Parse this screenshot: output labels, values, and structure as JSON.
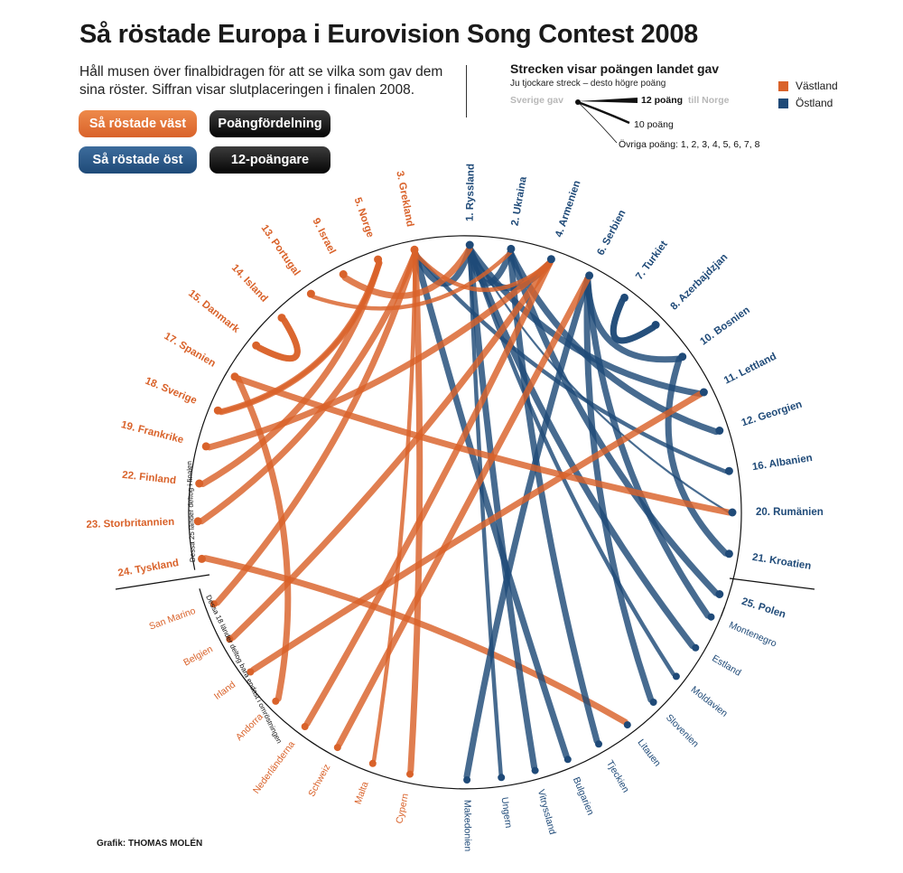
{
  "title": "Så röstade Europa i Eurovision Song Contest 2008",
  "intro": "Håll musen över finalbidragen för att se vilka som gav dem sina röster. Siffran visar slutplaceringen i finalen 2008.",
  "buttons": {
    "west": "Så röstade väst",
    "east": "Så röstade öst",
    "distribution": "Poängfördelning",
    "twelve": "12-poängare"
  },
  "legend": {
    "title": "Strecken visar poängen landet gav",
    "subtitle": "Ju tjockare streck – desto högre poäng",
    "giver": "Sverige gav",
    "twelve": "12 poäng",
    "receiver": "till Norge",
    "ten": "10 poäng",
    "other": "Övriga poäng: 1, 2, 3, 4, 5, 6, 7, 8",
    "west": "Västland",
    "east": "Östland"
  },
  "colors": {
    "west": "#d9622a",
    "east": "#1f4a78",
    "button_dark": "#111111"
  },
  "notes": {
    "finalists": "Dessa 25 länder deltog i finalen",
    "semi": "Dessa 18 länder deltog bara endast i omröstningen"
  },
  "credit": "Grafik: THOMAS MOLÉN",
  "chart_data": {
    "type": "chord",
    "finalists": [
      {
        "label": "1. Ryssland",
        "group": "east"
      },
      {
        "label": "2. Ukraina",
        "group": "east"
      },
      {
        "label": "4. Armenien",
        "group": "east"
      },
      {
        "label": "6. Serbien",
        "group": "east"
      },
      {
        "label": "7. Turkiet",
        "group": "east"
      },
      {
        "label": "8. Azerbajdzjan",
        "group": "east"
      },
      {
        "label": "10. Bosnien",
        "group": "east"
      },
      {
        "label": "11. Lettland",
        "group": "east"
      },
      {
        "label": "12. Georgien",
        "group": "east"
      },
      {
        "label": "16. Albanien",
        "group": "east"
      },
      {
        "label": "20. Rumänien",
        "group": "east"
      },
      {
        "label": "21. Kroatien",
        "group": "east"
      },
      {
        "label": "25. Polen",
        "group": "east"
      },
      {
        "label": "24. Tyskland",
        "group": "west"
      },
      {
        "label": "23. Storbritannien",
        "group": "west"
      },
      {
        "label": "22. Finland",
        "group": "west"
      },
      {
        "label": "19. Frankrike",
        "group": "west"
      },
      {
        "label": "18. Sverige",
        "group": "west"
      },
      {
        "label": "17. Spanien",
        "group": "west"
      },
      {
        "label": "15. Danmark",
        "group": "west"
      },
      {
        "label": "14. Island",
        "group": "west"
      },
      {
        "label": "13. Portugal",
        "group": "west"
      },
      {
        "label": "9. Israel",
        "group": "west"
      },
      {
        "label": "5. Norge",
        "group": "west"
      },
      {
        "label": "3. Grekland",
        "group": "west"
      }
    ],
    "voters_only": [
      {
        "label": "Montenegro",
        "group": "east"
      },
      {
        "label": "Estland",
        "group": "east"
      },
      {
        "label": "Moldavien",
        "group": "east"
      },
      {
        "label": "Slovenien",
        "group": "east"
      },
      {
        "label": "Litauen",
        "group": "east"
      },
      {
        "label": "Tjeckien",
        "group": "east"
      },
      {
        "label": "Bulgarien",
        "group": "east"
      },
      {
        "label": "Vitryssland",
        "group": "east"
      },
      {
        "label": "Ungern",
        "group": "east"
      },
      {
        "label": "Makedonien",
        "group": "east"
      },
      {
        "label": "San Marino",
        "group": "west"
      },
      {
        "label": "Belgien",
        "group": "west"
      },
      {
        "label": "Irland",
        "group": "west"
      },
      {
        "label": "Andorra",
        "group": "west"
      },
      {
        "label": "Nederländerna",
        "group": "west"
      },
      {
        "label": "Schweiz",
        "group": "west"
      },
      {
        "label": "Malta",
        "group": "west"
      },
      {
        "label": "Cypern",
        "group": "west"
      }
    ],
    "links": [
      {
        "from": "Sverige",
        "to": "Norge",
        "points": 12
      },
      {
        "from": "Tyskland",
        "to": "Litauen",
        "points": 12
      },
      {
        "from": "Ryssland",
        "to": "Grekland",
        "points": 12
      },
      {
        "from": "Ukraina",
        "to": "Ryssland",
        "points": 12
      },
      {
        "from": "Vitryssland",
        "to": "Ryssland",
        "points": 12
      },
      {
        "from": "Armenien",
        "to": "Ryssland",
        "points": 12
      },
      {
        "from": "Lettland",
        "to": "Ryssland",
        "points": 12
      },
      {
        "from": "Estland",
        "to": "Ryssland",
        "points": 12
      },
      {
        "from": "Moldavien",
        "to": "Ryssland",
        "points": 10
      },
      {
        "from": "Bulgarien",
        "to": "Grekland",
        "points": 12
      },
      {
        "from": "Makedonien",
        "to": "Serbien",
        "points": 12
      },
      {
        "from": "Montenegro",
        "to": "Serbien",
        "points": 12
      },
      {
        "from": "Slovenien",
        "to": "Serbien",
        "points": 12
      },
      {
        "from": "Bosnien",
        "to": "Serbien",
        "points": 12
      },
      {
        "from": "Kroatien",
        "to": "Bosnien",
        "points": 12
      },
      {
        "from": "Albanien",
        "to": "Grekland",
        "points": 10
      },
      {
        "from": "Cypern",
        "to": "Grekland",
        "points": 12
      },
      {
        "from": "Georgien",
        "to": "Ukraina",
        "points": 12
      },
      {
        "from": "Polen",
        "to": "Ukraina",
        "points": 12
      },
      {
        "from": "Tjeckien",
        "to": "Ukraina",
        "points": 12
      },
      {
        "from": "Azerbajdzjan",
        "to": "Turkiet",
        "points": 12
      },
      {
        "from": "Turkiet",
        "to": "Azerbajdzjan",
        "points": 12
      },
      {
        "from": "Rumänien",
        "to": "Ryssland",
        "points": 8
      },
      {
        "from": "Ungern",
        "to": "Ryssland",
        "points": 10
      },
      {
        "from": "Danmark",
        "to": "Island",
        "points": 12
      },
      {
        "from": "Finland",
        "to": "Norge",
        "points": 12
      },
      {
        "from": "Island",
        "to": "Danmark",
        "points": 12
      },
      {
        "from": "Norge",
        "to": "Sverige",
        "points": 10
      },
      {
        "from": "Frankrike",
        "to": "Armenien",
        "points": 12
      },
      {
        "from": "Belgien",
        "to": "Armenien",
        "points": 12
      },
      {
        "from": "Nederländerna",
        "to": "Armenien",
        "points": 12
      },
      {
        "from": "Spanien",
        "to": "Rumänien",
        "points": 12
      },
      {
        "from": "Andorra",
        "to": "Spanien",
        "points": 12
      },
      {
        "from": "Portugal",
        "to": "Ukraina",
        "points": 10
      },
      {
        "from": "Storbritannien",
        "to": "Grekland",
        "points": 12
      },
      {
        "from": "Irland",
        "to": "Lettland",
        "points": 12
      },
      {
        "from": "Schweiz",
        "to": "Serbien",
        "points": 12
      },
      {
        "from": "Malta",
        "to": "Grekland",
        "points": 10
      },
      {
        "from": "San Marino",
        "to": "Grekland",
        "points": 12
      },
      {
        "from": "Israel",
        "to": "Ryssland",
        "points": 12
      },
      {
        "from": "Grekland",
        "to": "Armenien",
        "points": 10
      }
    ]
  }
}
